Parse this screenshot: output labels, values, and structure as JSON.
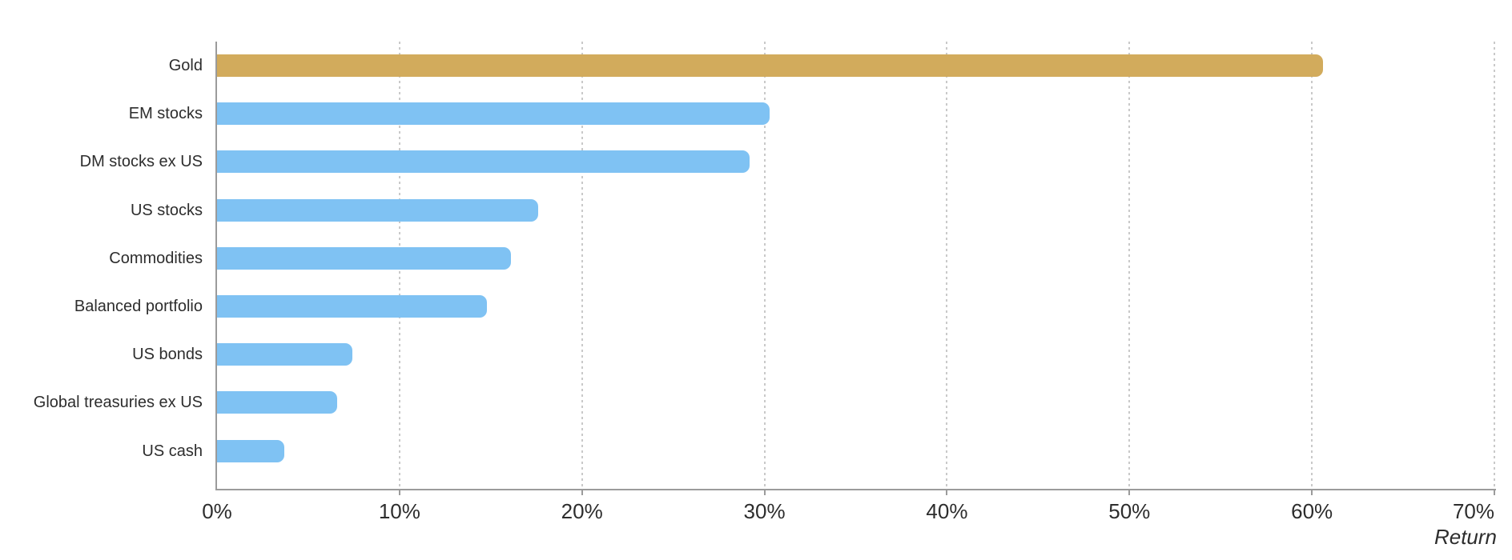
{
  "chart_data": {
    "type": "bar",
    "orientation": "horizontal",
    "title": "",
    "categories": [
      "Gold",
      "EM stocks",
      "DM stocks ex US",
      "US stocks",
      "Commodities",
      "Balanced portfolio",
      "US bonds",
      "Global treasuries ex US",
      "US cash"
    ],
    "values": [
      60.6,
      30.3,
      29.2,
      17.6,
      16.1,
      14.8,
      7.4,
      6.6,
      3.7
    ],
    "unit": "%",
    "xlabel": "Return",
    "ylabel": "",
    "xlim": [
      0,
      70
    ],
    "x_tick_interval": 10,
    "x_ticks": [
      "0%",
      "10%",
      "20%",
      "30%",
      "40%",
      "50%",
      "60%",
      "70%"
    ],
    "grid": "vertical-dotted",
    "legend": "none",
    "highlight_category": "Gold",
    "colors": {
      "default_bar": "#7FC2F3",
      "highlight_bar": "#D2AB5C",
      "axis_line": "#9B9B9B",
      "gridline": "#C9C9C9",
      "text": "#2D2D2D"
    }
  }
}
